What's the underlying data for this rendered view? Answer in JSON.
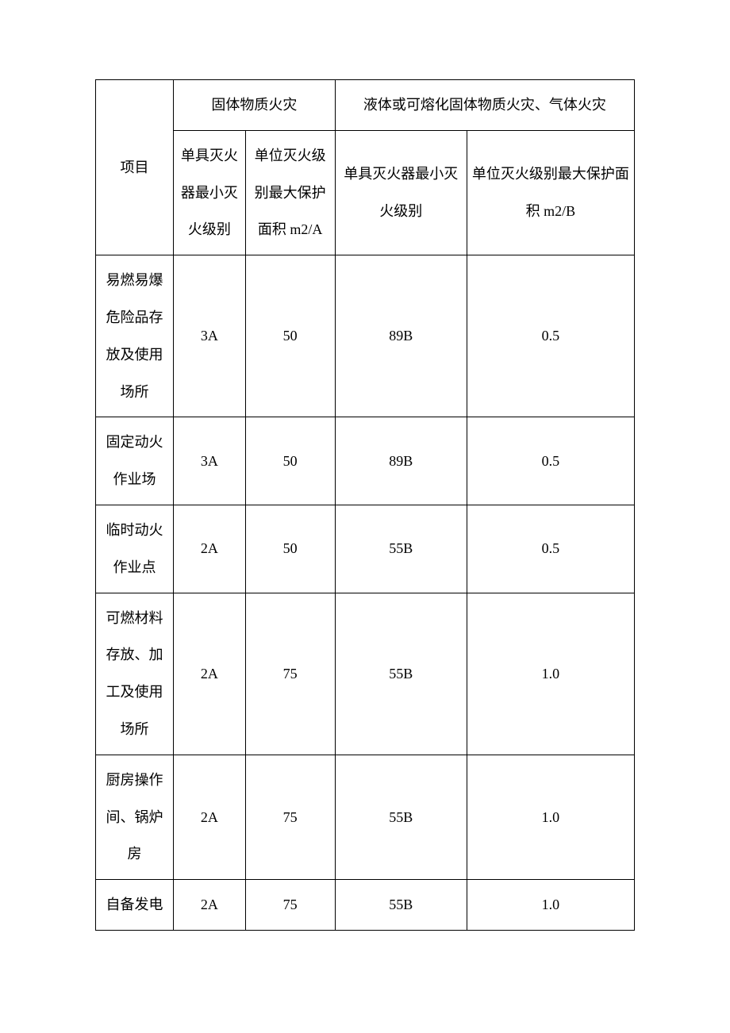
{
  "table": {
    "type": "table",
    "border_color": "#000000",
    "background_color": "#ffffff",
    "text_color": "#000000",
    "font_family": "SimSun",
    "header_fontsize": 18,
    "cell_fontsize": 18,
    "line_height": 2.6,
    "columns": [
      {
        "key": "project",
        "width_pct": 13
      },
      {
        "key": "solid_min_level",
        "width_pct": 12
      },
      {
        "key": "solid_max_area",
        "width_pct": 15
      },
      {
        "key": "liquid_min_level",
        "width_pct": 22
      },
      {
        "key": "liquid_max_area",
        "width_pct": 28
      }
    ],
    "headers": {
      "project": "项目",
      "solid_group": "固体物质火灾",
      "liquid_group": "液体或可熔化固体物质火灾、气体火灾",
      "solid_min_level": "单具灭火器最小灭火级别",
      "solid_max_area": "单位灭火级别最大保护面积 m2/A",
      "liquid_min_level": "单具灭火器最小灭火级别",
      "liquid_max_area": "单位灭火级别最大保护面积 m2/B"
    },
    "rows": [
      {
        "project": "易燃易爆危险品存放及使用场所",
        "solid_min_level": "3A",
        "solid_max_area": "50",
        "liquid_min_level": "89B",
        "liquid_max_area": "0.5"
      },
      {
        "project": "固定动火作业场",
        "solid_min_level": "3A",
        "solid_max_area": "50",
        "liquid_min_level": "89B",
        "liquid_max_area": "0.5"
      },
      {
        "project": "临时动火作业点",
        "solid_min_level": "2A",
        "solid_max_area": "50",
        "liquid_min_level": "55B",
        "liquid_max_area": "0.5"
      },
      {
        "project": "可燃材料存放、加工及使用场所",
        "solid_min_level": "2A",
        "solid_max_area": "75",
        "liquid_min_level": "55B",
        "liquid_max_area": "1.0"
      },
      {
        "project": "厨房操作间、锅炉房",
        "solid_min_level": "2A",
        "solid_max_area": "75",
        "liquid_min_level": "55B",
        "liquid_max_area": "1.0"
      },
      {
        "project": "自备发电",
        "solid_min_level": "2A",
        "solid_max_area": "75",
        "liquid_min_level": "55B",
        "liquid_max_area": "1.0"
      }
    ]
  }
}
